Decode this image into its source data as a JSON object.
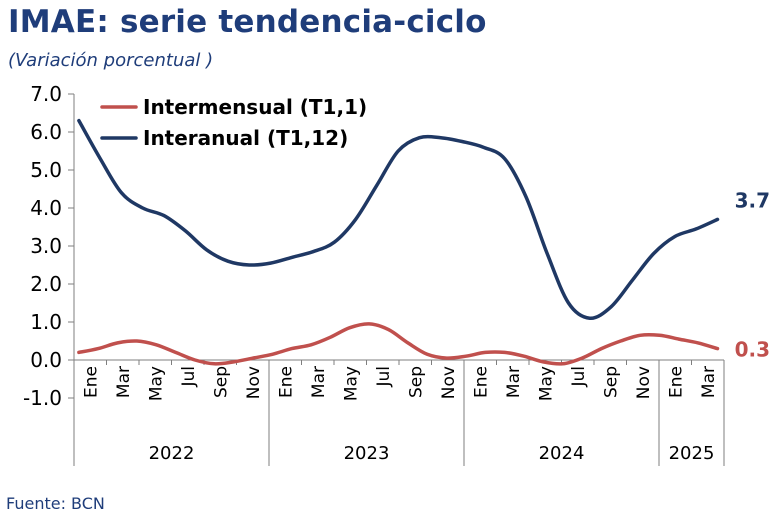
{
  "title": "IMAE: serie tendencia-ciclo",
  "subtitle": "(Variación porcentual )",
  "source": "Fuente: BCN",
  "chart_data": {
    "type": "line",
    "title": "IMAE: serie tendencia-ciclo",
    "subtitle": "(Variación porcentual )",
    "ylim": [
      -1.0,
      7.0
    ],
    "y_ticks": [
      "7.0",
      "6.0",
      "5.0",
      "4.0",
      "3.0",
      "2.0",
      "1.0",
      "0.0",
      "-1.0"
    ],
    "x_month_labels": [
      "Ene",
      "Mar",
      "May",
      "Jul",
      "Sep",
      "Nov",
      "Ene",
      "Mar",
      "May",
      "Jul",
      "Sep",
      "Nov",
      "Ene",
      "Mar",
      "May",
      "Jul",
      "Sep",
      "Nov",
      "Ene",
      "Mar"
    ],
    "x_year_labels": [
      "2022",
      "2023",
      "2024",
      "2025"
    ],
    "legend_position": "top-left",
    "grid": false,
    "series": [
      {
        "name": "Intermensual (T1,1)",
        "color": "#c0504d",
        "end_label": "0.3",
        "values": [
          0.2,
          0.3,
          0.45,
          0.5,
          0.4,
          0.2,
          0.0,
          -0.1,
          -0.05,
          0.05,
          0.15,
          0.3,
          0.4,
          0.6,
          0.85,
          0.95,
          0.8,
          0.45,
          0.15,
          0.05,
          0.1,
          0.2,
          0.2,
          0.1,
          -0.05,
          -0.1,
          0.05,
          0.3,
          0.5,
          0.65,
          0.65,
          0.55,
          0.45,
          0.3
        ]
      },
      {
        "name": "Interanual (T1,12)",
        "color": "#1f3864",
        "end_label": "3.7",
        "values": [
          6.3,
          5.3,
          4.4,
          4.0,
          3.8,
          3.4,
          2.9,
          2.6,
          2.5,
          2.55,
          2.7,
          2.85,
          3.1,
          3.7,
          4.6,
          5.5,
          5.85,
          5.85,
          5.75,
          5.6,
          5.3,
          4.3,
          2.8,
          1.5,
          1.1,
          1.4,
          2.1,
          2.8,
          3.25,
          3.45,
          3.7
        ]
      }
    ]
  }
}
